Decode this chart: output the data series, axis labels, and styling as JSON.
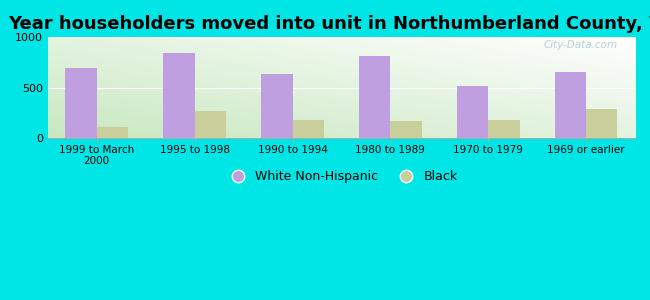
{
  "title": "Year householders moved into unit in Northumberland County, VA",
  "categories": [
    "1999 to March\n2000",
    "1995 to 1998",
    "1990 to 1994",
    "1980 to 1989",
    "1970 to 1979",
    "1969 or earlier"
  ],
  "white_values": [
    700,
    840,
    640,
    810,
    520,
    655
  ],
  "black_values": [
    105,
    270,
    175,
    165,
    175,
    285
  ],
  "white_color": "#bf9fdf",
  "black_color": "#c8cf9a",
  "background_color": "#00e5e5",
  "ylim": [
    0,
    1000
  ],
  "yticks": [
    0,
    500,
    1000
  ],
  "bar_width": 0.32,
  "title_fontsize": 13,
  "legend_labels": [
    "White Non-Hispanic",
    "Black"
  ],
  "watermark": "City-Data.com",
  "grad_color_bottom_left": "#c8e8c0",
  "grad_color_top_right": "#ffffff"
}
